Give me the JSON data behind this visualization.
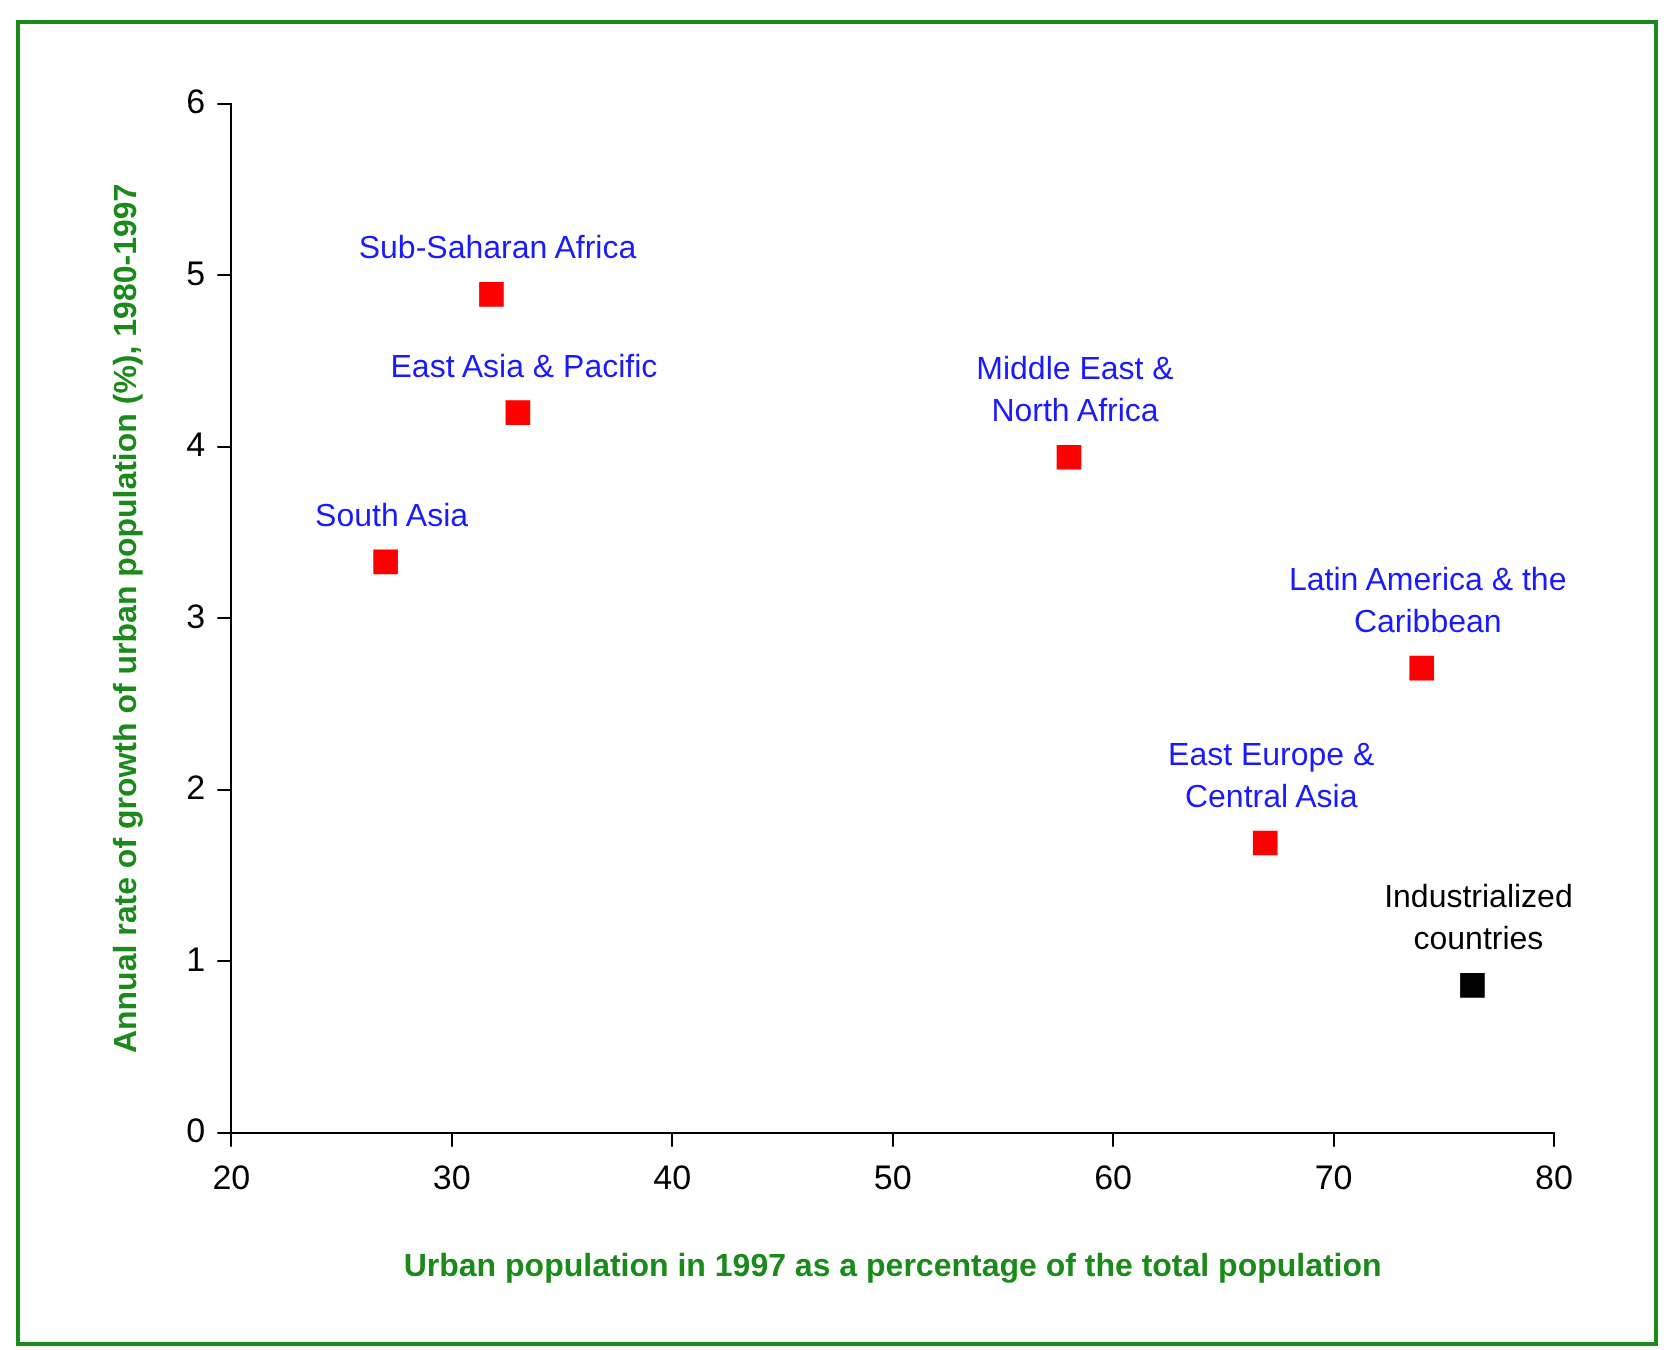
{
  "chart_data": {
    "type": "scatter",
    "xlabel": "Urban population in 1997 as a percentage of the total population",
    "ylabel": "Annual rate of growth of urban population (%), 1980-1997",
    "series": [
      {
        "color": "#ff0000",
        "x": [
          31.8,
          33,
          27,
          58,
          74,
          66.9
        ],
        "values": [
          4.89,
          4.2,
          3.33,
          3.94,
          2.71,
          1.69
        ]
      },
      {
        "color": "#000000",
        "x": [
          76.3
        ],
        "values": [
          0.86
        ]
      }
    ],
    "annotations": [
      {
        "text": "Sub-Saharan Africa",
        "x": 31.8,
        "y": 4.89
      },
      {
        "text": "East Asia & Pacific",
        "x": 33,
        "y": 4.2
      },
      {
        "text": "South Asia",
        "x": 27,
        "y": 3.33
      },
      {
        "text": "Middle East &\nNorth Africa",
        "x": 58,
        "y": 3.94
      },
      {
        "text": "Latin America & the\nCaribbean",
        "x": 74,
        "y": 2.71
      },
      {
        "text": "East Europe &\nCentral Asia",
        "x": 66.9,
        "y": 1.69
      },
      {
        "text": "Industrialized\ncountries",
        "x": 76.3,
        "y": 0.86
      }
    ],
    "xlim": [
      20,
      80
    ],
    "xticks": [
      20,
      30,
      40,
      50,
      60,
      70,
      80
    ],
    "ylim": [
      0,
      6
    ],
    "yticks": [
      0,
      1,
      2,
      3,
      4,
      5,
      6
    ],
    "grid": false,
    "legend": false,
    "marker": "square"
  }
}
